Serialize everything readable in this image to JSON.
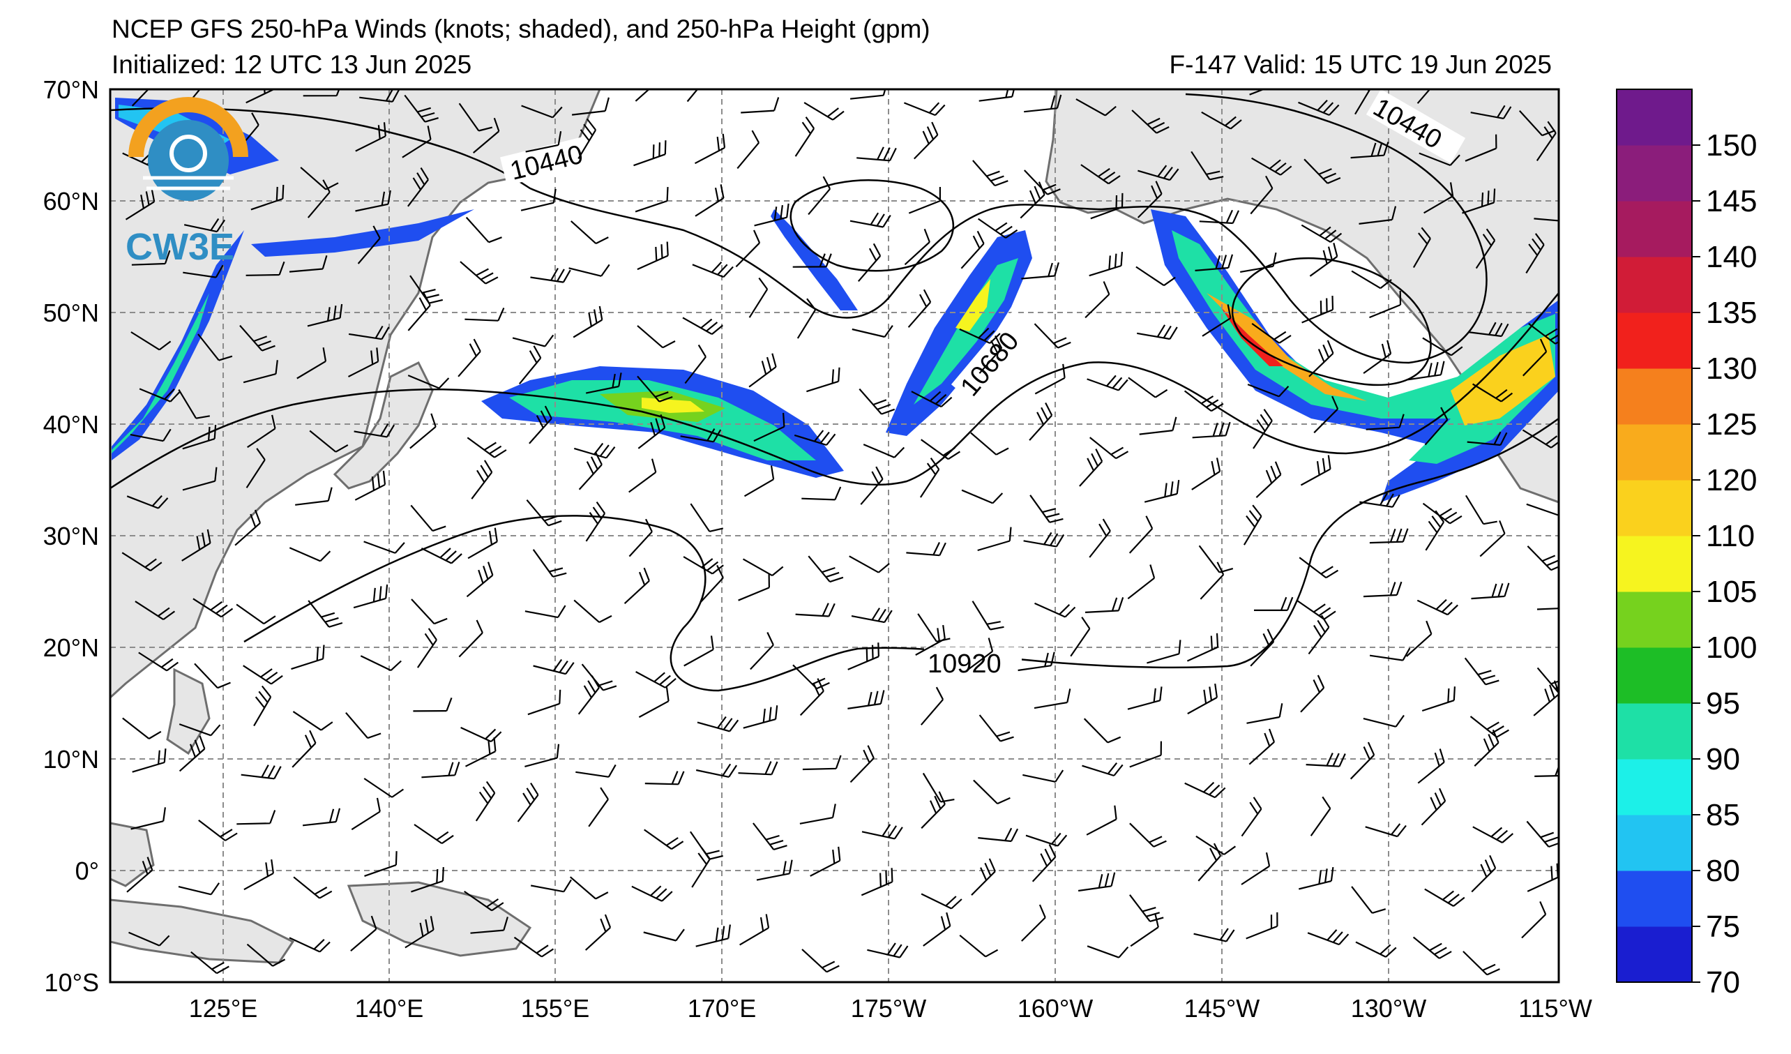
{
  "header": {
    "title": "NCEP GFS 250-hPa Winds (knots; shaded), and 250-hPa Height (gpm)",
    "initialized": "Initialized: 12 UTC 13 Jun 2025",
    "valid": "F-147  Valid: 15 UTC 19 Jun 2025"
  },
  "logo": {
    "text": "CW3E",
    "colors": [
      "#f3a11f",
      "#2f8ec4"
    ]
  },
  "map": {
    "lat_labels": [
      "70°N",
      "60°N",
      "50°N",
      "40°N",
      "30°N",
      "20°N",
      "10°N",
      "0°",
      "10°S"
    ],
    "lon_labels": [
      "125°E",
      "140°E",
      "155°E",
      "170°E",
      "175°W",
      "160°W",
      "145°W",
      "130°W",
      "115°W"
    ],
    "contour_labels": [
      "10440",
      "10440",
      "10680",
      "10920"
    ],
    "land_color": "#e6e6e6",
    "grid_style": "dashed gray"
  },
  "colorbar": {
    "labels": [
      "70",
      "75",
      "80",
      "85",
      "90",
      "95",
      "100",
      "105",
      "110",
      "120",
      "125",
      "130",
      "135",
      "140",
      "145",
      "150"
    ],
    "colors": [
      "#1a1ed0",
      "#1f4ef0",
      "#22c4f2",
      "#1cf0e8",
      "#1ee0a6",
      "#1dbe26",
      "#76d21e",
      "#f6f41f",
      "#fad11d",
      "#f9ab1c",
      "#f5801d",
      "#f1211c",
      "#d11c37",
      "#a61b5f",
      "#8b1d7b",
      "#6f1a8c"
    ]
  }
}
